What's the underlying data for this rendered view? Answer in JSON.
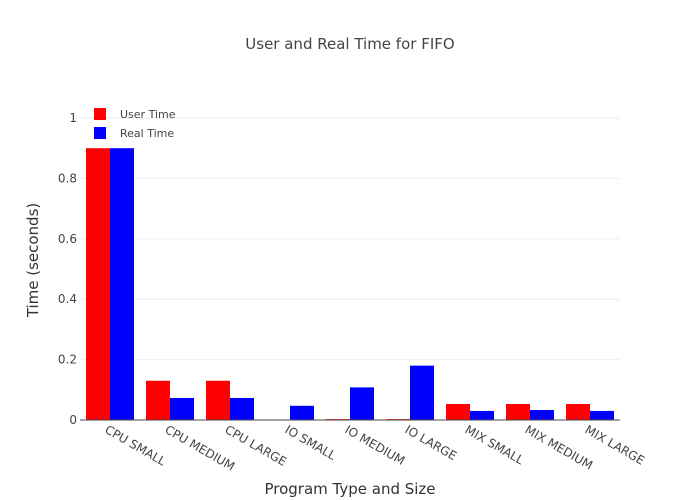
{
  "chart_data": {
    "type": "bar",
    "title": "User and Real Time for FIFO",
    "xlabel": "Program Type and Size",
    "ylabel": "Time (seconds)",
    "ylim": [
      0,
      1.0
    ],
    "yticks": [
      0,
      0.2,
      0.4,
      0.6,
      0.8,
      1
    ],
    "ytick_labels": [
      "0",
      "0.2",
      "0.4",
      "0.6",
      "0.8",
      "1"
    ],
    "grid": true,
    "legend_position": "top-left",
    "categories": [
      "CPU SMALL",
      "CPU MEDIUM",
      "CPU LARGE",
      "IO SMALL",
      "IO MEDIUM",
      "IO LARGE",
      "MIX SMALL",
      "MIX MEDIUM",
      "MIX LARGE"
    ],
    "series": [
      {
        "name": "User Time",
        "color": "#ff0000",
        "values": [
          0.9,
          0.13,
          0.13,
          0.0,
          0.003,
          0.003,
          0.053,
          0.053,
          0.053
        ]
      },
      {
        "name": "Real Time",
        "color": "#0000ff",
        "values": [
          0.9,
          0.073,
          0.073,
          0.047,
          0.108,
          0.18,
          0.03,
          0.033,
          0.03
        ]
      }
    ]
  }
}
